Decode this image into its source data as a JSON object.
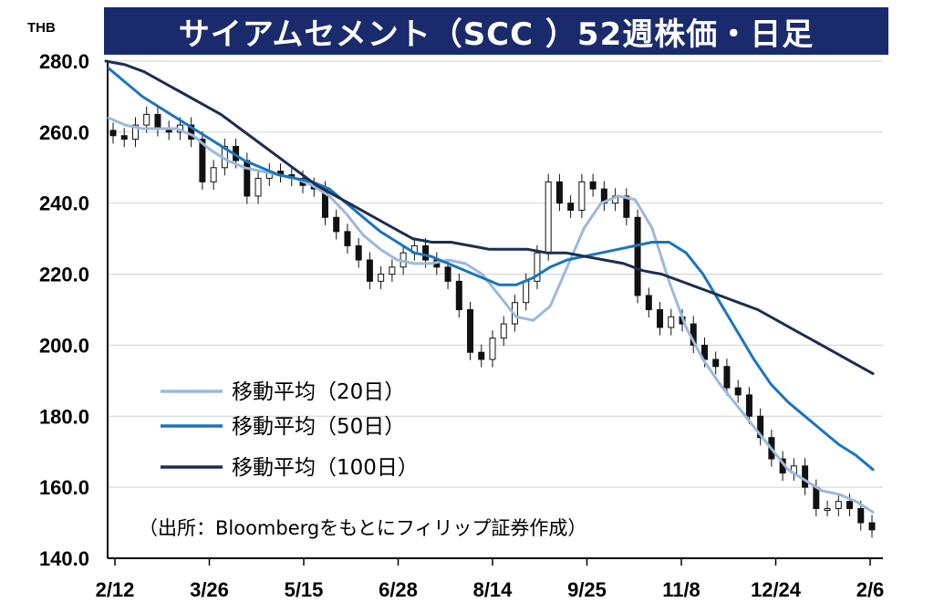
{
  "title": "サイアムセメント（SCC ）52週株価・日足",
  "unit_label": "THB",
  "source_note": "（出所：Bloombergをもとにフィリップ証券作成）",
  "chart_data": {
    "type": "line",
    "title": "サイアムセメント（SCC ）52週株価・日足",
    "ylabel": "THB",
    "xlabel": "",
    "ylim": [
      140,
      280
    ],
    "y_ticks": [
      "280.0",
      "260.0",
      "240.0",
      "220.0",
      "200.0",
      "180.0",
      "160.0",
      "140.0"
    ],
    "x_ticks": [
      "2/12",
      "3/26",
      "5/15",
      "6/28",
      "8/14",
      "9/25",
      "11/8",
      "12/24",
      "2/6"
    ],
    "grid": "horizontal",
    "legend_position": "lower-left",
    "candlestick_closes_approx": [
      259,
      258,
      262,
      265,
      261,
      260,
      262,
      258,
      246,
      250,
      256,
      252,
      242,
      247,
      249,
      248,
      247,
      245,
      244,
      236,
      232,
      228,
      224,
      218,
      220,
      222,
      226,
      228,
      224,
      222,
      218,
      210,
      198,
      196,
      202,
      206,
      212,
      218,
      226,
      246,
      240,
      238,
      246,
      244,
      240,
      242,
      236,
      214,
      210,
      205,
      208,
      206,
      200,
      196,
      194,
      188,
      186,
      180,
      174,
      168,
      164,
      166,
      160,
      154,
      154,
      156,
      154,
      150,
      148
    ],
    "series": [
      {
        "name": "移動平均（20日）",
        "color": "#9bb9dd",
        "values": [
          264,
          262,
          261,
          261,
          261,
          259,
          255,
          252,
          250,
          249,
          248,
          247,
          245,
          242,
          237,
          231,
          227,
          224,
          223,
          223,
          224,
          223,
          220,
          214,
          208,
          207,
          211,
          222,
          233,
          240,
          242,
          241,
          233,
          218,
          205,
          196,
          189,
          183,
          177,
          171,
          165,
          162,
          159,
          158,
          156,
          153
        ]
      },
      {
        "name": "移動平均（50日）",
        "color": "#1b75bc",
        "values": [
          278,
          274,
          270,
          267,
          264,
          261,
          258,
          255,
          252,
          250,
          248,
          247,
          246,
          244,
          240,
          236,
          232,
          229,
          226,
          225,
          223,
          221,
          219,
          217,
          217,
          219,
          222,
          224,
          225,
          226,
          227,
          228,
          229,
          229,
          226,
          220,
          212,
          204,
          196,
          189,
          184,
          180,
          176,
          172,
          169,
          165
        ]
      },
      {
        "name": "移動平均（100日）",
        "color": "#1c2e50",
        "values": [
          281,
          279,
          277,
          274,
          271,
          268,
          265,
          261,
          257,
          253,
          249,
          245,
          242,
          239,
          236,
          233,
          230,
          229,
          229,
          228,
          227,
          227,
          227,
          226,
          226,
          225,
          224,
          223,
          221,
          220,
          218,
          216,
          214,
          212,
          210,
          207,
          204,
          201,
          198,
          195,
          192
        ]
      }
    ]
  }
}
